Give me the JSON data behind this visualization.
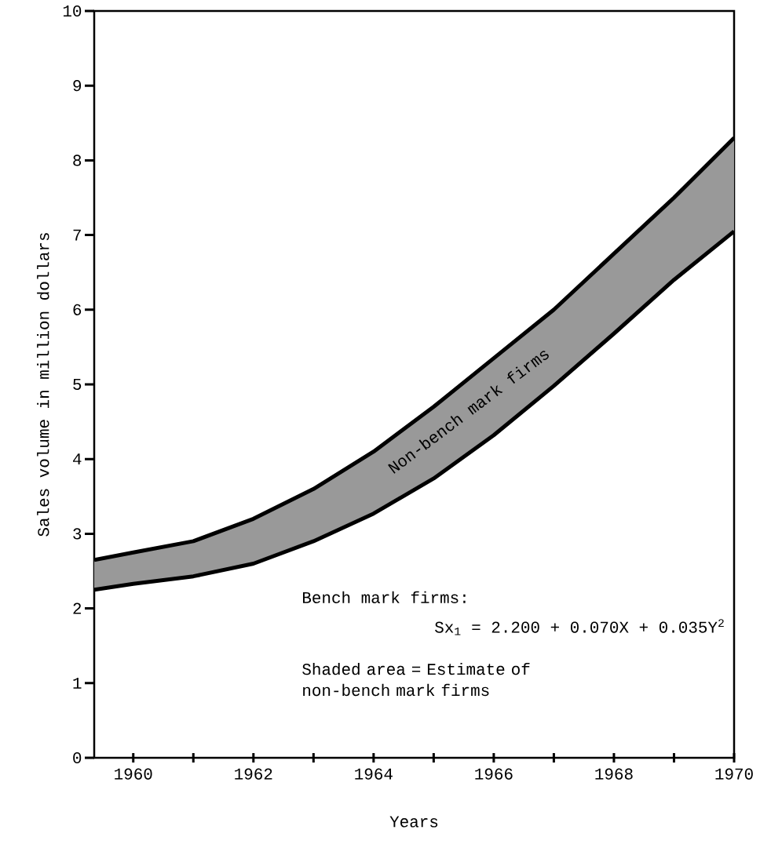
{
  "chart_data": {
    "type": "line",
    "xlabel": "Years",
    "ylabel": "Sales volume in million dollars",
    "x": [
      1959.35,
      1960,
      1961,
      1962,
      1963,
      1964,
      1965,
      1966,
      1967,
      1968,
      1969,
      1970
    ],
    "series": [
      {
        "color": "#000000",
        "values": [
          2.25,
          2.33,
          2.43,
          2.6,
          2.9,
          3.27,
          3.74,
          4.32,
          4.98,
          5.68,
          6.4,
          7.05
        ]
      },
      {
        "color": "#000000",
        "values": [
          2.65,
          2.75,
          2.9,
          3.2,
          3.6,
          4.1,
          4.7,
          5.35,
          6.0,
          6.75,
          7.5,
          8.3
        ],
        "lower": [
          2.25,
          2.33,
          2.43,
          2.6,
          2.9,
          3.27,
          3.74,
          4.32,
          4.98,
          5.68,
          6.4,
          7.05
        ],
        "upper": [
          2.65,
          2.75,
          2.9,
          3.2,
          3.6,
          4.1,
          4.7,
          5.35,
          6.0,
          6.75,
          7.5,
          8.3
        ]
      }
    ],
    "xlim": [
      1959.35,
      1970
    ],
    "ylim": [
      0,
      10
    ],
    "xticks": [
      1960,
      {
        "value": 1961,
        "label": null
      },
      1962,
      {
        "value": 1963,
        "label": null
      },
      1964,
      {
        "value": 1965,
        "label": null
      },
      1966,
      {
        "value": 1967,
        "label": null
      },
      1968,
      {
        "value": 1969,
        "label": null
      },
      1970
    ],
    "yticks": [
      0,
      1,
      2,
      3,
      4,
      5,
      6,
      7,
      8,
      9,
      10
    ],
    "annotations": [
      "Non-bench mark firms",
      "Bench mark firms:",
      "Sx$_{1}$ = 2.200 + 0.070X + 0.035Y$^{2}$",
      "Shaded area = Estimate of non-bench mark firms"
    ],
    "grid": false,
    "line_style": "solid",
    "marker": "none"
  }
}
